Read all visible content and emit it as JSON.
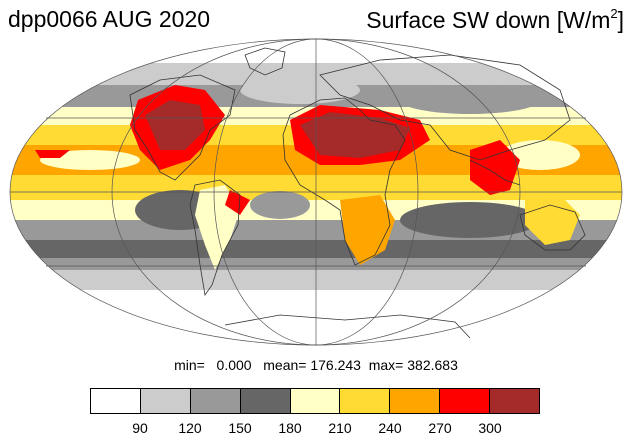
{
  "title_left": "dpp0066 AUG 2020",
  "title_right_main": "Surface SW down [W/m",
  "title_right_sup": "2",
  "title_right_end": "]",
  "stats": {
    "min_label": "min=",
    "min_value": "0.000",
    "mean_label": "mean=",
    "mean_value": "176.243",
    "max_label": "max=",
    "max_value": "382.683"
  },
  "colorbar": {
    "colors": [
      "#ffffff",
      "#cccccc",
      "#999999",
      "#666666",
      "#ffffc6",
      "#ffdb33",
      "#ffa500",
      "#ff0000",
      "#a52a2a"
    ],
    "ticks": [
      "90",
      "120",
      "150",
      "180",
      "210",
      "240",
      "270",
      "300"
    ]
  },
  "map": {
    "projection": "Mollweide"
  }
}
